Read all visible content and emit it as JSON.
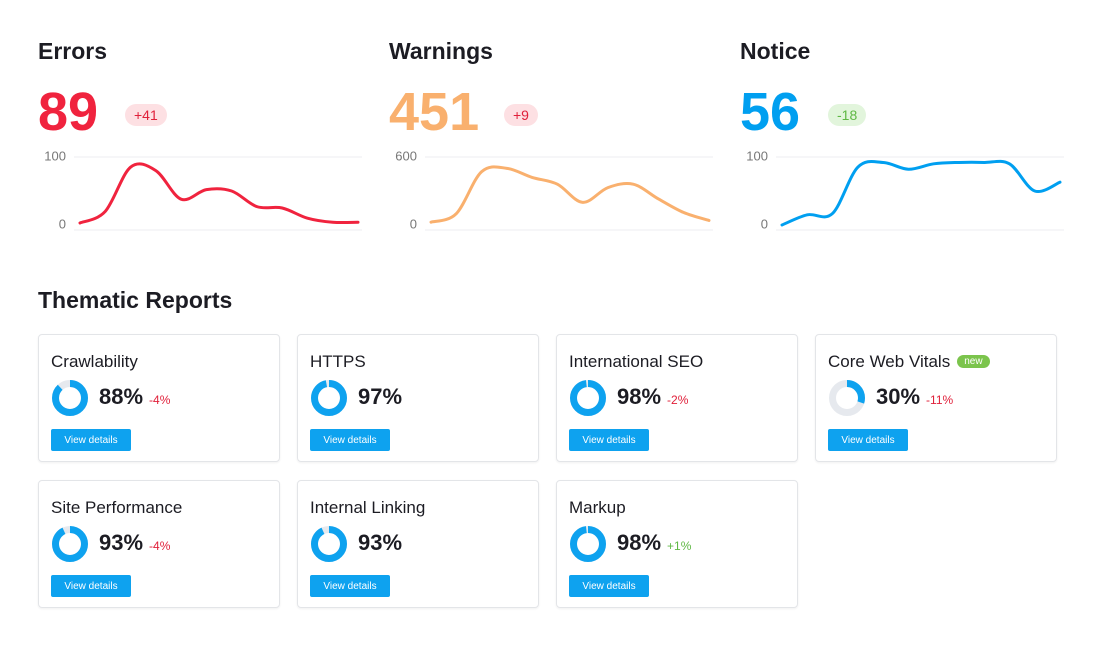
{
  "metrics": [
    {
      "title": "Errors",
      "value": "89",
      "delta": "+41",
      "color": "#f0233e",
      "badge_bg": "#fde0e3",
      "badge_color": "#e0203a",
      "chart": {
        "type": "line",
        "values": [
          3,
          20,
          85,
          80,
          38,
          52,
          50,
          27,
          25,
          10,
          4,
          4
        ],
        "ylim": [
          0,
          100
        ],
        "yticks": [
          0,
          100
        ]
      }
    },
    {
      "title": "Warnings",
      "value": "451",
      "delta": "+9",
      "color": "#f9b06e",
      "badge_bg": "#fde0e3",
      "badge_color": "#e0203a",
      "chart": {
        "type": "line",
        "values": [
          25,
          100,
          470,
          500,
          420,
          360,
          200,
          330,
          360,
          230,
          110,
          40
        ],
        "ylim": [
          0,
          600
        ],
        "yticks": [
          0,
          600
        ]
      }
    },
    {
      "title": "Notice",
      "value": "56",
      "delta": "-18",
      "color": "#009ff0",
      "badge_bg": "#e2f5dc",
      "badge_color": "#5fb844",
      "chart": {
        "type": "line",
        "values": [
          0,
          15,
          17,
          85,
          92,
          82,
          90,
          92,
          92,
          90,
          50,
          63
        ],
        "ylim": [
          0,
          100
        ],
        "yticks": [
          0,
          100
        ]
      }
    }
  ],
  "reports": {
    "title": "Thematic Reports",
    "button": "View details",
    "cards": [
      {
        "name": "Crawlability",
        "value": 88,
        "value_label": "88%",
        "delta": "-4%",
        "delta_color": "#e0203a"
      },
      {
        "name": "HTTPS",
        "value": 97,
        "value_label": "97%"
      },
      {
        "name": "International SEO",
        "value": 98,
        "value_label": "98%",
        "delta": "-2%",
        "delta_color": "#e0203a"
      },
      {
        "name": "Core Web Vitals",
        "badge": "new",
        "value": 30,
        "value_label": "30%",
        "delta": "-11%",
        "delta_color": "#e0203a"
      },
      {
        "name": "Site Performance",
        "value": 93,
        "value_label": "93%",
        "delta": "-4%",
        "delta_color": "#e0203a"
      },
      {
        "name": "Internal Linking",
        "value": 93,
        "value_label": "93%"
      },
      {
        "name": "Markup",
        "value": 98,
        "value_label": "98%",
        "delta": "+1%",
        "delta_color": "#5fb844"
      }
    ]
  }
}
